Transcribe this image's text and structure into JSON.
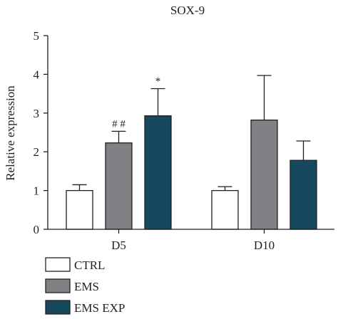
{
  "chart_data": {
    "type": "bar",
    "title": "SOX-9",
    "xlabel": "",
    "ylabel": "Relative expression",
    "ylim": [
      0,
      5
    ],
    "yticks": [
      0,
      1,
      2,
      3,
      4,
      5
    ],
    "categories": [
      "D5",
      "D10"
    ],
    "series": [
      {
        "name": "CTRL",
        "color": "#ffffff",
        "values": [
          1.0,
          1.0
        ],
        "errors": [
          0.15,
          0.1
        ]
      },
      {
        "name": "EMS",
        "color": "#808184",
        "values": [
          2.23,
          2.82
        ],
        "errors": [
          0.3,
          1.15
        ]
      },
      {
        "name": "EMS EXP",
        "color": "#17495e",
        "values": [
          2.93,
          1.78
        ],
        "errors": [
          0.7,
          0.5
        ]
      }
    ],
    "annotations": [
      {
        "category": "D5",
        "series": "EMS",
        "text": "# #"
      },
      {
        "category": "D5",
        "series": "EMS EXP",
        "text": "*"
      }
    ],
    "legend": "bottom-left"
  }
}
